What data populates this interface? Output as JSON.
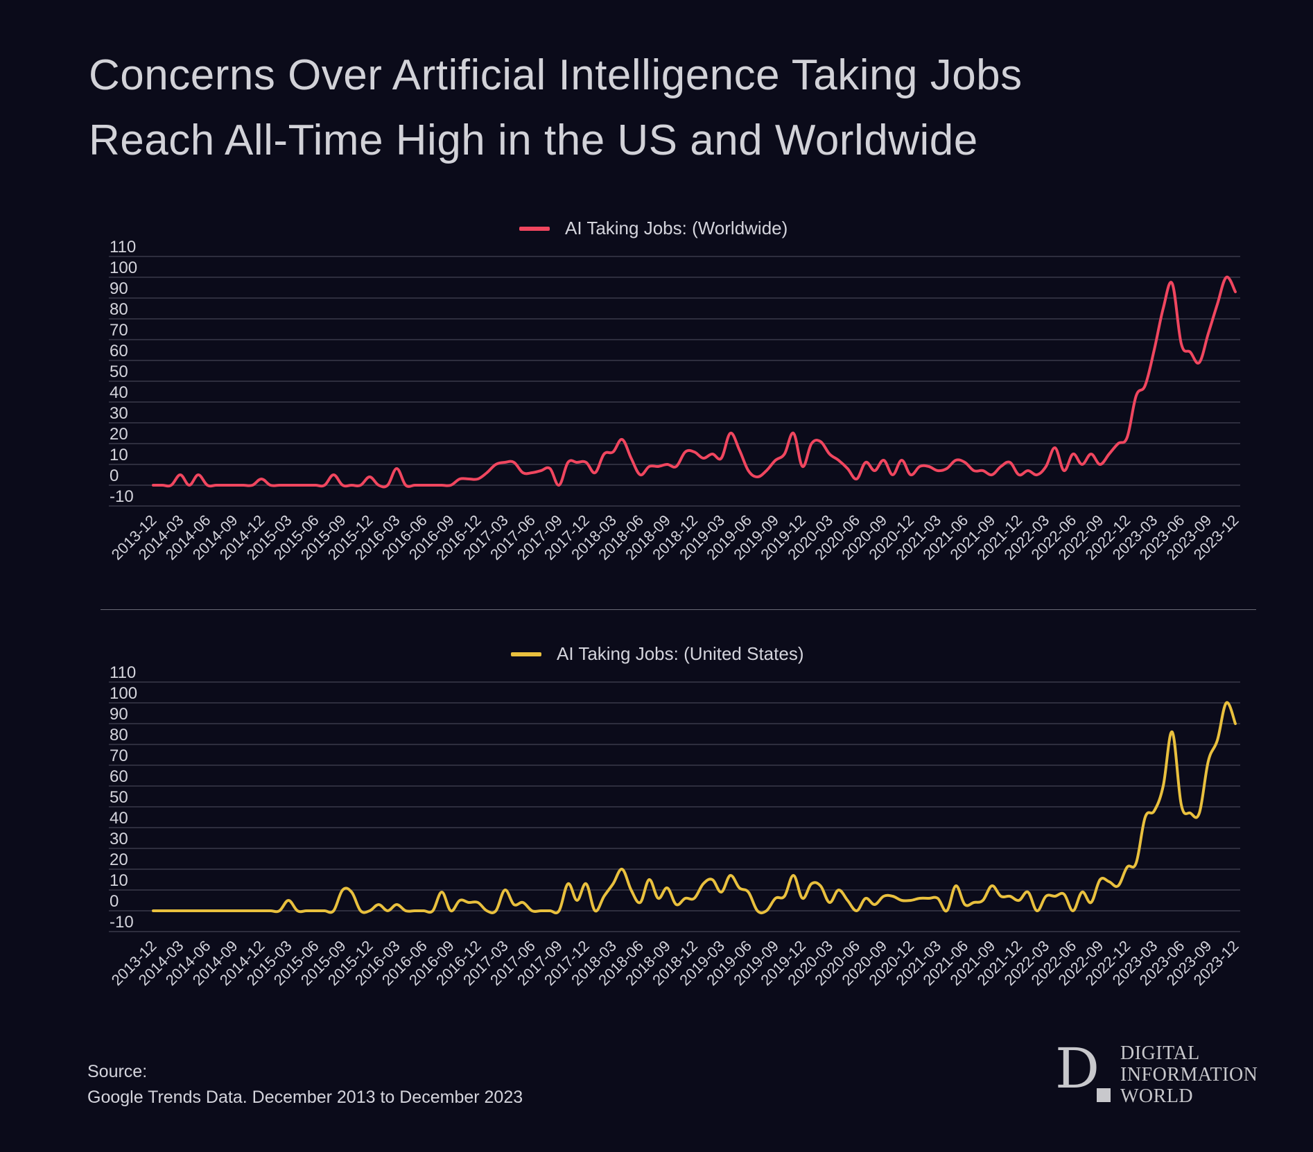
{
  "title": {
    "line1": "Concerns Over Artificial Intelligence Taking Jobs",
    "line2": "Reach All-Time High in the US and Worldwide"
  },
  "source": {
    "label": "Source:",
    "text": "Google Trends Data. December 2013 to December 2023"
  },
  "logo": {
    "letter": "D",
    "line1": "DIGITAL",
    "line2": "INFORMATION",
    "line3": "WORLD"
  },
  "colors": {
    "background": "#0b0b1a",
    "worldwide": "#f0465f",
    "us": "#e9c03e",
    "grid": "#3a3a4a"
  },
  "chart_data": [
    {
      "type": "line",
      "legend": "AI Taking Jobs: (Worldwide)",
      "legend_placement": "top-center",
      "color": "#f0465f",
      "ylim": [
        -10,
        110
      ],
      "y_ticks": [
        "110",
        "100",
        "90",
        "80",
        "70",
        "60",
        "50",
        "40",
        "30",
        "20",
        "10",
        "0",
        "-10"
      ],
      "grid": true,
      "x_ticks": [
        "2013-12",
        "2014-03",
        "2014-06",
        "2014-09",
        "2014-12",
        "2015-03",
        "2015-06",
        "2015-09",
        "2015-12",
        "2016-03",
        "2016-06",
        "2016-09",
        "2016-12",
        "2017-03",
        "2017-06",
        "2017-09",
        "2017-12",
        "2018-03",
        "2018-06",
        "2018-09",
        "2018-12",
        "2019-03",
        "2019-06",
        "2019-09",
        "2019-12",
        "2020-03",
        "2020-06",
        "2020-09",
        "2020-12",
        "2021-03",
        "2021-06",
        "2021-09",
        "2021-12",
        "2022-03",
        "2022-06",
        "2022-09",
        "2022-12",
        "2023-03",
        "2023-06",
        "2023-09",
        "2023-12"
      ],
      "x_start": "2013-12",
      "x_end": "2023-12",
      "x_step": "monthly",
      "values": [
        0,
        0,
        0,
        5,
        0,
        5,
        0,
        0,
        0,
        0,
        0,
        0,
        3,
        0,
        0,
        0,
        0,
        0,
        0,
        0,
        5,
        0,
        0,
        0,
        4,
        0,
        0,
        8,
        0,
        0,
        0,
        0,
        0,
        0,
        3,
        3,
        3,
        6,
        10,
        11,
        11,
        6,
        6,
        7,
        8,
        0,
        11,
        11,
        11,
        6,
        15,
        16,
        22,
        13,
        5,
        9,
        9,
        10,
        9,
        16,
        16,
        13,
        15,
        13,
        25,
        17,
        7,
        4,
        7,
        12,
        15,
        25,
        9,
        20,
        21,
        15,
        12,
        8,
        3,
        11,
        7,
        12,
        5,
        12,
        5,
        9,
        9,
        7,
        8,
        12,
        11,
        7,
        7,
        5,
        9,
        11,
        5,
        7,
        5,
        9,
        18,
        7,
        15,
        10,
        15,
        10,
        15,
        20,
        23,
        43,
        48,
        65,
        85,
        97,
        68,
        64,
        59,
        73,
        87,
        100,
        93
      ]
    },
    {
      "type": "line",
      "legend": "AI Taking Jobs: (United States)",
      "legend_placement": "top-center",
      "color": "#e9c03e",
      "ylim": [
        -10,
        110
      ],
      "y_ticks": [
        "110",
        "100",
        "90",
        "80",
        "70",
        "60",
        "50",
        "40",
        "30",
        "20",
        "10",
        "0",
        "-10"
      ],
      "grid": true,
      "x_ticks": [
        "2013-12",
        "2014-03",
        "2014-06",
        "2014-09",
        "2014-12",
        "2015-03",
        "2015-06",
        "2015-09",
        "2015-12",
        "2016-03",
        "2016-06",
        "2016-09",
        "2016-12",
        "2017-03",
        "2017-06",
        "2017-09",
        "2017-12",
        "2018-03",
        "2018-06",
        "2018-09",
        "2018-12",
        "2019-03",
        "2019-06",
        "2019-09",
        "2019-12",
        "2020-03",
        "2020-06",
        "2020-09",
        "2020-12",
        "2021-03",
        "2021-06",
        "2021-09",
        "2021-12",
        "2022-03",
        "2022-06",
        "2022-09",
        "2022-12",
        "2023-03",
        "2023-06",
        "2023-09",
        "2023-12"
      ],
      "x_start": "2013-12",
      "x_end": "2023-12",
      "x_step": "monthly",
      "values": [
        0,
        0,
        0,
        0,
        0,
        0,
        0,
        0,
        0,
        0,
        0,
        0,
        0,
        0,
        0,
        5,
        0,
        0,
        0,
        0,
        0,
        10,
        9,
        0,
        0,
        3,
        0,
        3,
        0,
        0,
        0,
        0,
        9,
        0,
        5,
        4,
        4,
        0,
        0,
        10,
        3,
        4,
        0,
        0,
        0,
        0,
        13,
        5,
        13,
        0,
        7,
        13,
        20,
        10,
        4,
        15,
        6,
        11,
        3,
        6,
        6,
        13,
        15,
        9,
        17,
        11,
        9,
        0,
        0,
        6,
        7,
        17,
        6,
        13,
        12,
        4,
        10,
        5,
        0,
        6,
        3,
        7,
        7,
        5,
        5,
        6,
        6,
        6,
        0,
        12,
        3,
        4,
        5,
        12,
        7,
        7,
        5,
        9,
        0,
        7,
        7,
        8,
        0,
        9,
        4,
        15,
        14,
        12,
        21,
        23,
        45,
        48,
        60,
        86,
        51,
        47,
        47,
        72,
        82,
        100,
        90
      ]
    }
  ]
}
